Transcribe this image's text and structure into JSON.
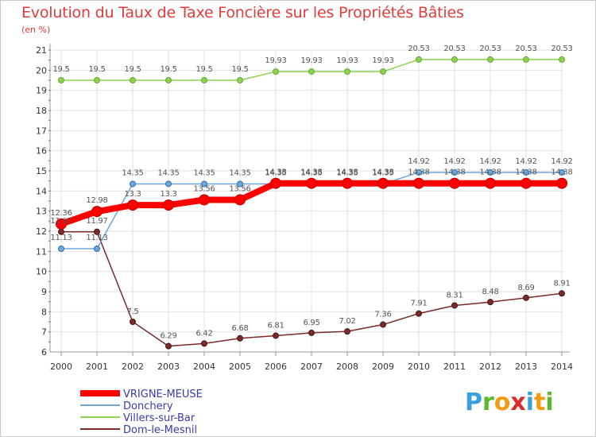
{
  "chart_data": {
    "type": "line",
    "title": "Evolution du Taux de Taxe Foncière sur les Propriétés Bâties",
    "subtitle": "(en %)",
    "x": [
      "2000",
      "2001",
      "2002",
      "2003",
      "2004",
      "2005",
      "2006",
      "2007",
      "2008",
      "2009",
      "2010",
      "2011",
      "2012",
      "2013",
      "2014"
    ],
    "ylim": [
      6,
      21
    ],
    "yticks": [
      "6",
      "7",
      "8",
      "9",
      "10",
      "11",
      "12",
      "13",
      "14",
      "15",
      "16",
      "17",
      "18",
      "19",
      "20",
      "21"
    ],
    "series": [
      {
        "name": "VRIGNE-MEUSE",
        "color": "#ff0000",
        "width": 8,
        "marker": 6.5,
        "values": [
          12.36,
          12.98,
          13.3,
          13.3,
          13.56,
          13.56,
          14.38,
          14.38,
          14.38,
          14.38,
          14.38,
          14.38,
          14.38,
          14.38,
          14.38
        ],
        "labels": [
          "12.36",
          "12.98",
          "13.3",
          "13.3",
          "13.56",
          "13.56",
          "14.38",
          "14.38",
          "14.38",
          "14.38",
          "14.38",
          "14.38",
          "14.38",
          "14.38",
          "14.38"
        ]
      },
      {
        "name": "Donchery",
        "color": "#6fa6d8",
        "width": 1.5,
        "marker": 3.5,
        "values": [
          11.13,
          11.13,
          14.35,
          14.35,
          14.35,
          14.35,
          14.35,
          14.35,
          14.35,
          14.35,
          14.92,
          14.92,
          14.92,
          14.92,
          14.92
        ],
        "labels": [
          "11.13",
          "11.13",
          "14.35",
          "14.35",
          "14.35",
          "14.35",
          "14.35",
          "14.35",
          "14.35",
          "14.35",
          "14.92",
          "14.92",
          "14.92",
          "14.92",
          "14.92"
        ]
      },
      {
        "name": "Villers-sur-Bar",
        "color": "#8fd152",
        "width": 1.5,
        "marker": 3.5,
        "values": [
          19.5,
          19.5,
          19.5,
          19.5,
          19.5,
          19.5,
          19.93,
          19.93,
          19.93,
          19.93,
          20.53,
          20.53,
          20.53,
          20.53,
          20.53
        ],
        "labels": [
          "19.5",
          "19.5",
          "19.5",
          "19.5",
          "19.5",
          "19.5",
          "19.93",
          "19.93",
          "19.93",
          "19.93",
          "20.53",
          "20.53",
          "20.53",
          "20.53",
          "20.53"
        ]
      },
      {
        "name": "Dom-le-Mesnil",
        "color": "#7a2a2a",
        "width": 1.5,
        "marker": 3.5,
        "values": [
          11.97,
          11.97,
          7.5,
          6.29,
          6.42,
          6.68,
          6.81,
          6.95,
          7.02,
          7.36,
          7.91,
          8.31,
          8.48,
          8.69,
          8.91
        ],
        "labels": [
          "11.97",
          "11.97",
          "7.5",
          "6.29",
          "6.42",
          "6.68",
          "6.81",
          "6.95",
          "7.02",
          "7.36",
          "7.91",
          "8.31",
          "8.48",
          "8.69",
          "8.91"
        ]
      }
    ],
    "legend": [
      "VRIGNE-MEUSE",
      "Donchery",
      "Villers-sur-Bar",
      "Dom-le-Mesnil"
    ]
  },
  "logo": {
    "text": "Proxiti",
    "letters": [
      "P",
      "r",
      "o",
      "x",
      "i",
      "t",
      "i"
    ],
    "colors": [
      "#3aa0dc",
      "#5bb82f",
      "#f39c12",
      "#e02a2a",
      "#3aa0dc",
      "#f39c12",
      "#5bb82f"
    ]
  }
}
